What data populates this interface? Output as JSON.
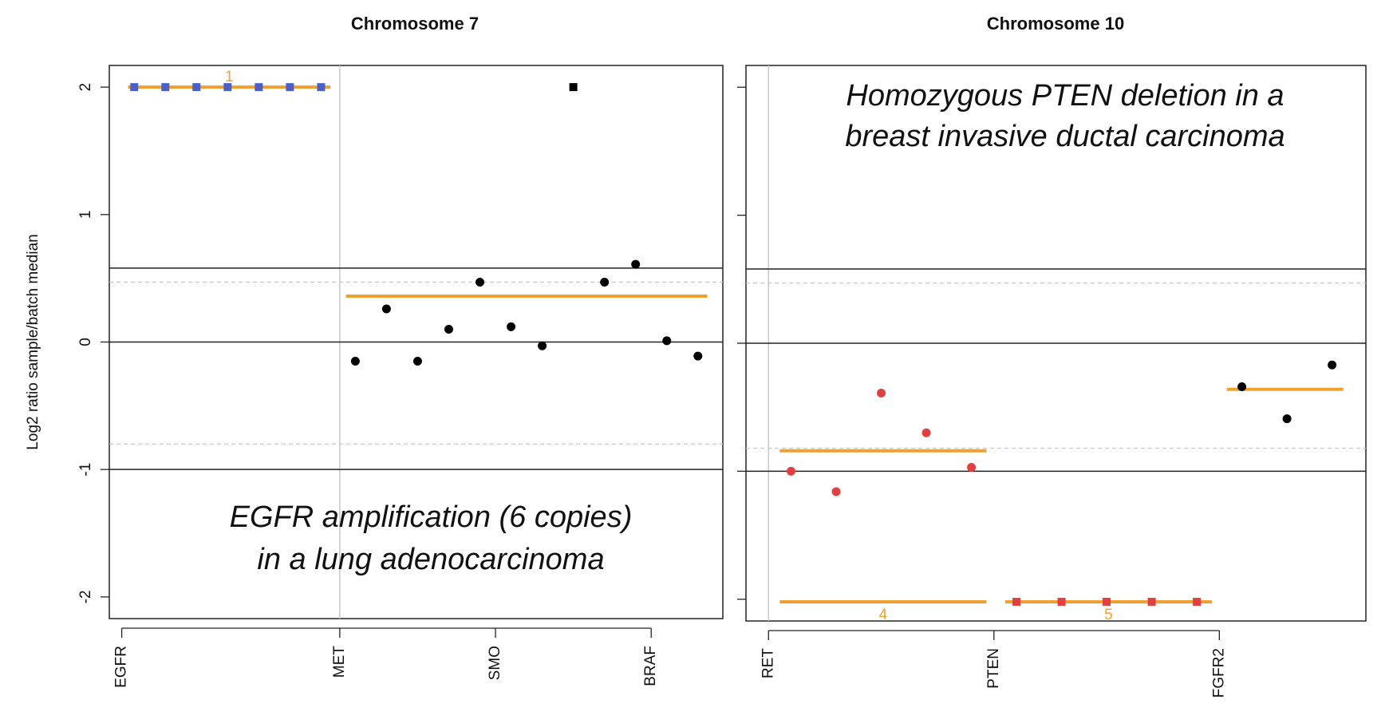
{
  "chart_data": [
    {
      "type": "scatter",
      "title": "Chromosome 7",
      "ylabel": "Log2 ratio sample/batch median",
      "xlabel": "",
      "ylim": [
        -2.17,
        2.17
      ],
      "yticks": [
        2,
        1,
        0,
        -1,
        -2
      ],
      "ytick_labels": [
        "2",
        "1",
        "0",
        "-1",
        "-2"
      ],
      "genes": [
        {
          "name": "EGFR",
          "x": 0
        },
        {
          "name": "MET",
          "x": 7
        },
        {
          "name": "SMO",
          "x": 12
        },
        {
          "name": "BRAF",
          "x": 17
        }
      ],
      "xlim": [
        -0.4,
        19.3
      ],
      "gene_boundaries": [
        7
      ],
      "threshold_lines": [
        0.58,
        0,
        -1
      ],
      "dashed_lines": [
        0.47,
        -0.8
      ],
      "annotation": [
        "EGFR amplification (6 copies)",
        "in a lung adenocarcinoma"
      ],
      "points": [
        {
          "x": 0.4,
          "y": 2.0,
          "shape": "square",
          "color": "#4a5fc8"
        },
        {
          "x": 1.4,
          "y": 2.0,
          "shape": "square",
          "color": "#4a5fc8"
        },
        {
          "x": 2.4,
          "y": 2.0,
          "shape": "square",
          "color": "#4a5fc8"
        },
        {
          "x": 3.4,
          "y": 2.0,
          "shape": "square",
          "color": "#4a5fc8"
        },
        {
          "x": 4.4,
          "y": 2.0,
          "shape": "square",
          "color": "#4a5fc8"
        },
        {
          "x": 5.4,
          "y": 2.0,
          "shape": "square",
          "color": "#4a5fc8"
        },
        {
          "x": 6.4,
          "y": 2.0,
          "shape": "square",
          "color": "#4a5fc8"
        },
        {
          "x": 7.5,
          "y": -0.15,
          "shape": "circle",
          "color": "#000000"
        },
        {
          "x": 8.5,
          "y": 0.26,
          "shape": "circle",
          "color": "#000000"
        },
        {
          "x": 9.5,
          "y": -0.15,
          "shape": "circle",
          "color": "#000000"
        },
        {
          "x": 10.5,
          "y": 0.1,
          "shape": "circle",
          "color": "#000000"
        },
        {
          "x": 11.5,
          "y": 0.47,
          "shape": "circle",
          "color": "#000000"
        },
        {
          "x": 12.5,
          "y": 0.12,
          "shape": "circle",
          "color": "#000000"
        },
        {
          "x": 13.5,
          "y": -0.03,
          "shape": "circle",
          "color": "#000000"
        },
        {
          "x": 14.5,
          "y": 2.0,
          "shape": "square",
          "color": "#000000"
        },
        {
          "x": 15.5,
          "y": 0.47,
          "shape": "circle",
          "color": "#000000"
        },
        {
          "x": 16.5,
          "y": 0.61,
          "shape": "circle",
          "color": "#000000"
        },
        {
          "x": 17.5,
          "y": 0.01,
          "shape": "circle",
          "color": "#000000"
        },
        {
          "x": 18.5,
          "y": -0.11,
          "shape": "circle",
          "color": "#000000"
        }
      ],
      "segments": [
        {
          "x0": 0.2,
          "x1": 6.7,
          "y": 2.0,
          "label": "1"
        },
        {
          "x0": 7.2,
          "x1": 18.8,
          "y": 0.36,
          "label": ""
        }
      ],
      "colors": {
        "segment": "#f0a030",
        "amplified": "#4a5fc8"
      }
    },
    {
      "type": "scatter",
      "title": "Chromosome 10",
      "ylabel": "",
      "xlabel": "",
      "ylim": [
        -2.17,
        2.17
      ],
      "yticks": [
        2,
        1,
        0,
        -1,
        -2
      ],
      "ytick_labels": [
        "",
        "",
        "",
        "",
        ""
      ],
      "genes": [
        {
          "name": "RET",
          "x": 0
        },
        {
          "name": "PTEN",
          "x": 6
        },
        {
          "name": "FGFR2",
          "x": 12
        }
      ],
      "xlim": [
        -0.6,
        15.9
      ],
      "gene_boundaries": [
        0
      ],
      "threshold_lines": [
        0.58,
        0,
        -1
      ],
      "dashed_lines": [
        0.47,
        -0.82
      ],
      "annotation": [
        "Homozygous PTEN deletion in a",
        "breast invasive ductal carcinoma"
      ],
      "points": [
        {
          "x": 0.6,
          "y": -1.0,
          "shape": "circle",
          "color": "#e04040"
        },
        {
          "x": 1.8,
          "y": -1.16,
          "shape": "circle",
          "color": "#e04040"
        },
        {
          "x": 3.0,
          "y": -0.39,
          "shape": "circle",
          "color": "#e04040"
        },
        {
          "x": 4.2,
          "y": -0.7,
          "shape": "circle",
          "color": "#e04040"
        },
        {
          "x": 5.4,
          "y": -0.97,
          "shape": "circle",
          "color": "#e04040"
        },
        {
          "x": 6.6,
          "y": -2.02,
          "shape": "square",
          "color": "#e04040"
        },
        {
          "x": 7.8,
          "y": -2.02,
          "shape": "square",
          "color": "#e04040"
        },
        {
          "x": 9.0,
          "y": -2.02,
          "shape": "square",
          "color": "#e04040"
        },
        {
          "x": 10.2,
          "y": -2.02,
          "shape": "square",
          "color": "#e04040"
        },
        {
          "x": 11.4,
          "y": -2.02,
          "shape": "square",
          "color": "#e04040"
        },
        {
          "x": 12.6,
          "y": -0.34,
          "shape": "circle",
          "color": "#000000"
        },
        {
          "x": 13.8,
          "y": -0.59,
          "shape": "circle",
          "color": "#000000"
        },
        {
          "x": 15.0,
          "y": -0.17,
          "shape": "circle",
          "color": "#000000"
        }
      ],
      "segments": [
        {
          "x0": 0.3,
          "x1": 5.8,
          "y": -0.84,
          "label": ""
        },
        {
          "x0": 0.3,
          "x1": 5.8,
          "y": -2.02,
          "label": "4"
        },
        {
          "x0": 6.3,
          "x1": 11.8,
          "y": -2.02,
          "label": "5"
        },
        {
          "x0": 12.2,
          "x1": 15.3,
          "y": -0.36,
          "label": ""
        }
      ],
      "colors": {
        "segment": "#f0a030",
        "deleted": "#e04040"
      }
    }
  ]
}
